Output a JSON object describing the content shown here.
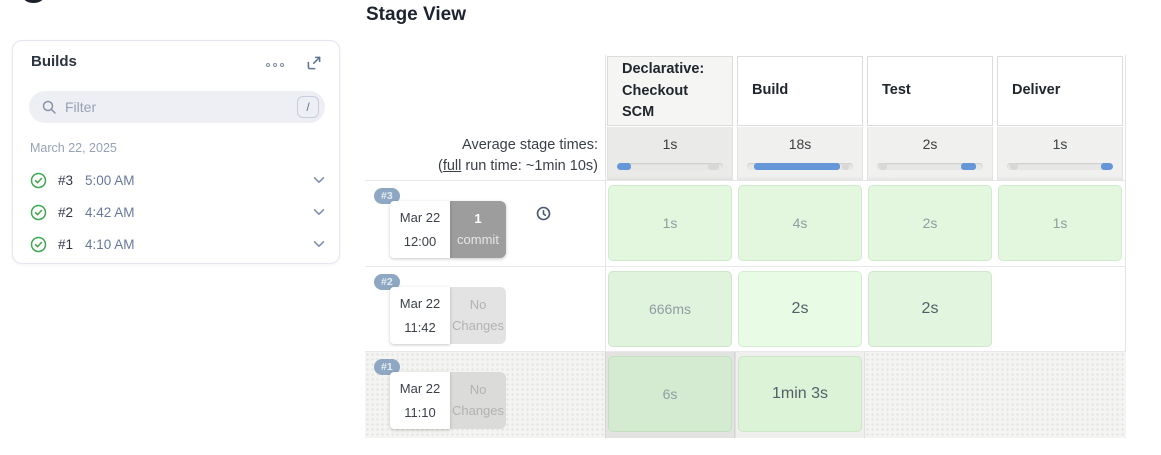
{
  "sidebar": {
    "title": "Builds",
    "filter": {
      "placeholder": "Filter",
      "shortcut_key": "/"
    },
    "date_header": "March 22, 2025",
    "builds": [
      {
        "number": "#3",
        "time": "5:00 AM",
        "status": "success"
      },
      {
        "number": "#2",
        "time": "4:42 AM",
        "status": "success"
      },
      {
        "number": "#1",
        "time": "4:10 AM",
        "status": "success"
      }
    ]
  },
  "main": {
    "title": "Stage View",
    "avg_label": {
      "line1": "Average stage times:",
      "line2_open": "(",
      "link_text": "full",
      "line2_rest": " run time: ~1min 10s)"
    },
    "stages": [
      {
        "name": "Declarative: Checkout SCM",
        "avg": "1s",
        "bar": {
          "start": 0,
          "width": 13
        },
        "ghost": {
          "start": 86,
          "width": 10
        }
      },
      {
        "name": "Build",
        "avg": "18s",
        "bar": {
          "start": 7,
          "width": 81
        },
        "ghost": {
          "start": 90,
          "width": 6
        }
      },
      {
        "name": "Test",
        "avg": "2s",
        "bar": {
          "start": 79,
          "width": 14
        },
        "ghost": {
          "start": 2,
          "width": 7
        }
      },
      {
        "name": "Deliver",
        "avg": "1s",
        "bar": {
          "start": 89,
          "width": 11
        },
        "ghost": {
          "start": 3,
          "width": 7
        }
      }
    ],
    "runs": [
      {
        "id": "#3",
        "date": "Mar 22",
        "time": "12:00",
        "changes_line1": "1",
        "changes_line2": "commit",
        "cells": [
          {
            "text": "1s"
          },
          {
            "text": "4s"
          },
          {
            "text": "2s"
          },
          {
            "text": "1s"
          }
        ]
      },
      {
        "id": "#2",
        "date": "Mar 22",
        "time": "11:42",
        "changes_line1": "No",
        "changes_line2": "Changes",
        "cells": [
          {
            "text": "666ms"
          },
          {
            "text": "2s"
          },
          {
            "text": "2s"
          },
          {
            "text": ""
          }
        ]
      },
      {
        "id": "#1",
        "date": "Mar 22",
        "time": "11:10",
        "changes_line1": "No",
        "changes_line2": "Changes",
        "cells": [
          {
            "text": "6s"
          },
          {
            "text": "1min 3s"
          },
          {
            "text": ""
          },
          {
            "text": ""
          }
        ]
      }
    ]
  },
  "colors": {
    "accent_blue": "#6597d8",
    "success_green": "#41a64e",
    "badge_blue": "#8ea7c2",
    "cell_green": "#e2f7de",
    "cell_green_dark": "#d4ebd1",
    "header_shade": "#f5f5f4",
    "avg_row_bg": "#f0f0ef"
  }
}
